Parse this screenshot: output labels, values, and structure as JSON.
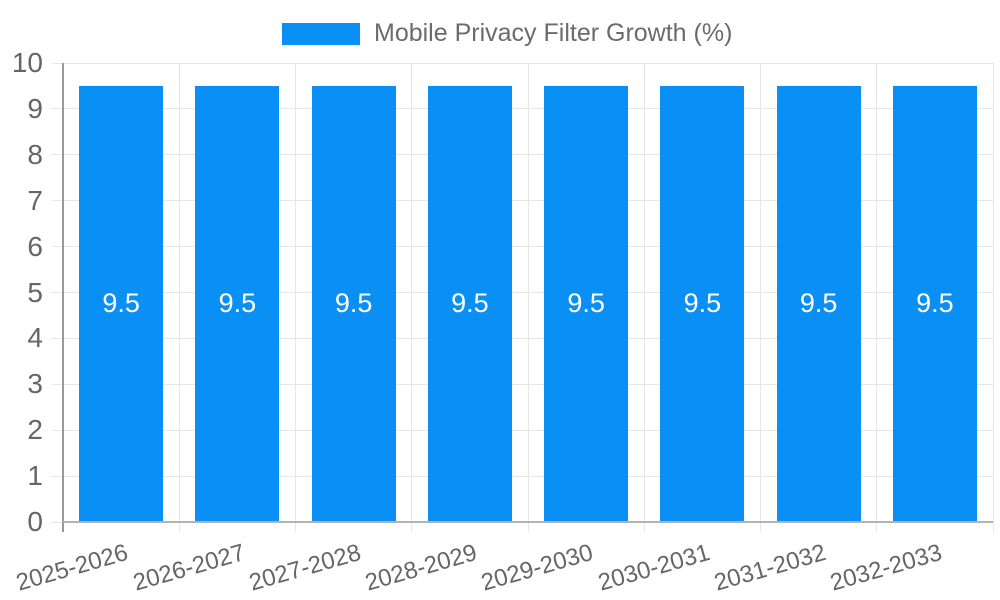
{
  "chart_data": {
    "type": "bar",
    "legend_label": "Mobile Privacy Filter Growth (%)",
    "legend_position": "top",
    "categories": [
      "2025-2026",
      "2026-2027",
      "2027-2028",
      "2028-2029",
      "2029-2030",
      "2030-2031",
      "2031-2032",
      "2032-2033"
    ],
    "series": [
      {
        "name": "Mobile Privacy Filter Growth (%)",
        "values": [
          9.5,
          9.5,
          9.5,
          9.5,
          9.5,
          9.5,
          9.5,
          9.5
        ]
      }
    ],
    "bar_value_labels": [
      "9.5",
      "9.5",
      "9.5",
      "9.5",
      "9.5",
      "9.5",
      "9.5",
      "9.5"
    ],
    "xlabel": "",
    "ylabel": "",
    "ylim": [
      0,
      10
    ],
    "y_tick_labels": [
      "0",
      "1",
      "2",
      "3",
      "4",
      "5",
      "6",
      "7",
      "8",
      "9",
      "10"
    ],
    "grid": true,
    "colors": {
      "bar": "#0A90F5",
      "bar_label_text": "#ffffff",
      "tick_text": "#666666",
      "legend_text": "#6b6b6b",
      "gridline": "#e6e6e6",
      "y_axis_line": "#999999",
      "x_axis_line": "#b3b3b3"
    }
  }
}
